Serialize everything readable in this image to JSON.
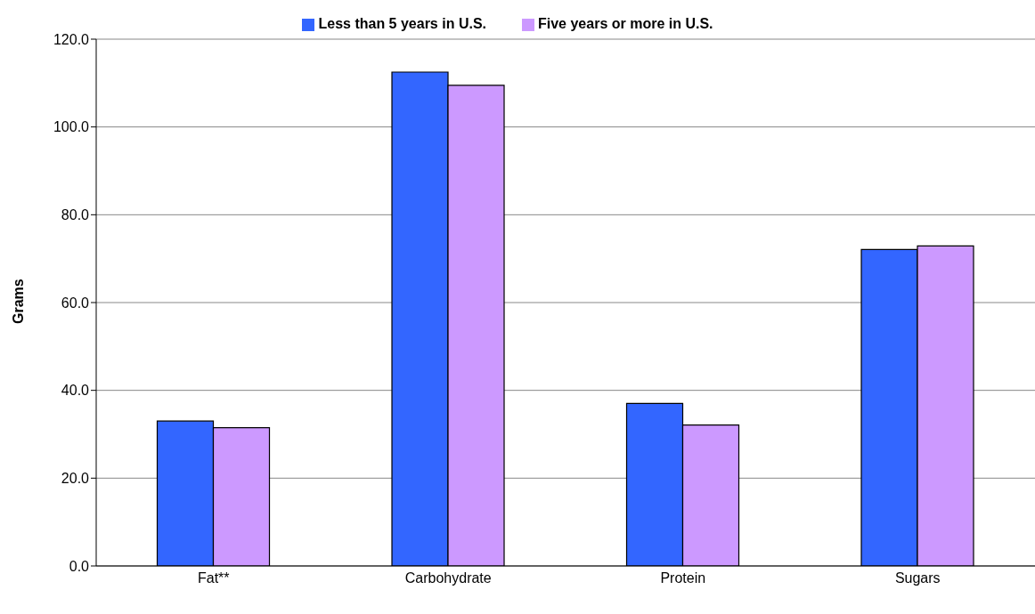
{
  "chart_data": {
    "type": "bar",
    "ylabel": "Grams",
    "categories": [
      "Fat**",
      "Carbohydrate",
      "Protein",
      "Sugars"
    ],
    "series": [
      {
        "name": "Less than 5 years in U.S.",
        "color": "#3366ff",
        "values": [
          33.0,
          112.5,
          37.0,
          72.1
        ]
      },
      {
        "name": "Five years or more in U.S.",
        "color": "#cc99ff",
        "values": [
          31.5,
          109.5,
          32.1,
          72.9
        ]
      }
    ],
    "ylim": [
      0,
      120
    ],
    "yticks": [
      {
        "value": 0,
        "label": "0.0"
      },
      {
        "value": 20,
        "label": "20.0"
      },
      {
        "value": 40,
        "label": "40.0"
      },
      {
        "value": 60,
        "label": "60.0"
      },
      {
        "value": 80,
        "label": "80.0"
      },
      {
        "value": 100,
        "label": "100.0"
      },
      {
        "value": 120,
        "label": "120.0"
      }
    ],
    "grid": "y",
    "legend": "top"
  }
}
